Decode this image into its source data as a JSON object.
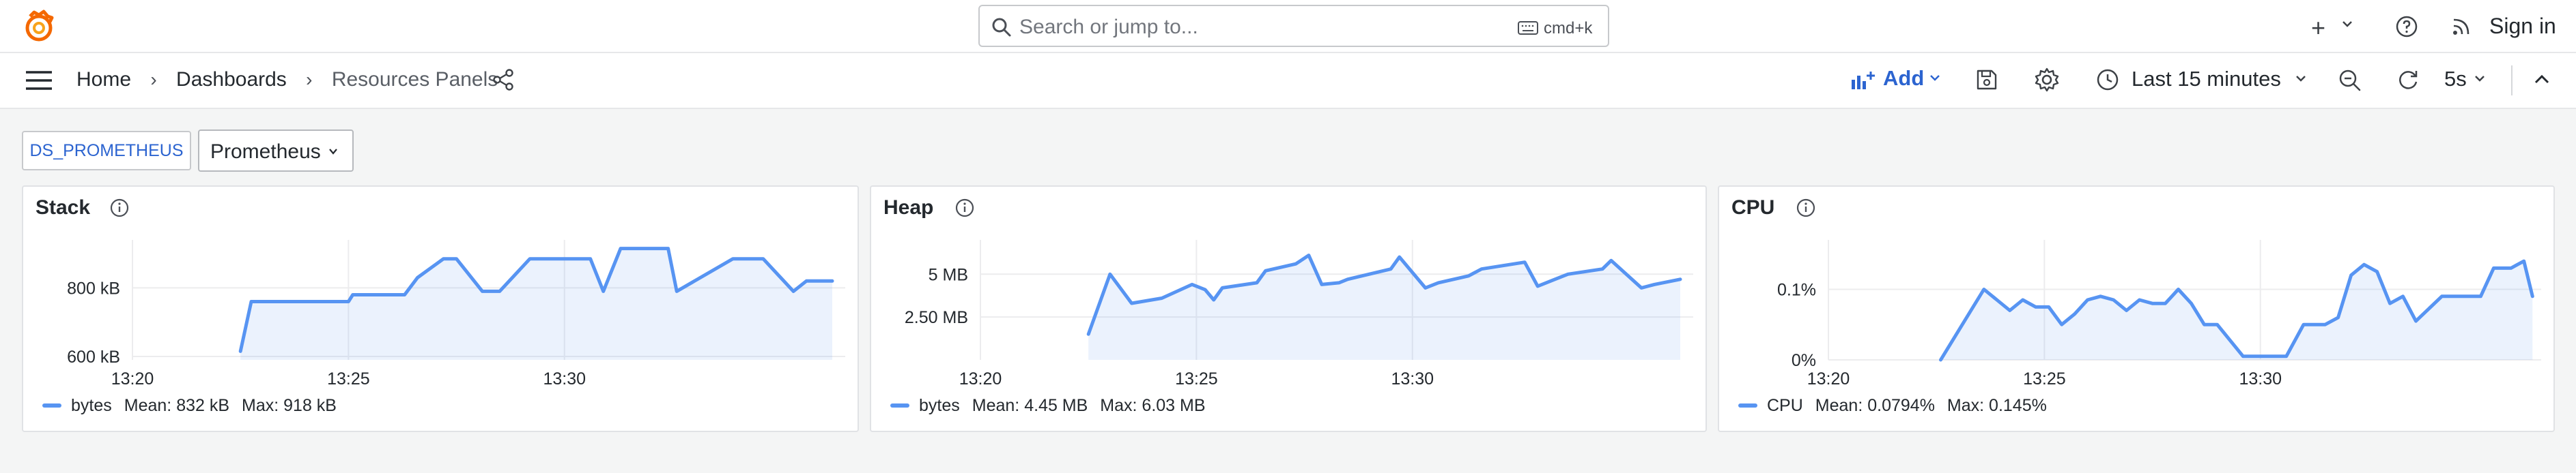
{
  "topbar": {
    "search_placeholder": "Search or jump to...",
    "search_shortcut": "cmd+k",
    "plus_label": "+",
    "signin_label": "Sign in"
  },
  "navbar": {
    "breadcrumb": [
      "Home",
      "Dashboards",
      "Resources Panels"
    ],
    "add_label": "Add",
    "time_range": "Last 15 minutes",
    "refresh_interval": "5s"
  },
  "variables": {
    "label": "DS_PROMETHEUS",
    "value": "Prometheus"
  },
  "colors": {
    "series": "#5794f2",
    "accent": "#2c64d0",
    "logo": "#f46800"
  },
  "panels": [
    {
      "title": "Stack",
      "legend": {
        "series": "bytes",
        "mean": "Mean: 832 kB",
        "max": "Max: 918 kB"
      }
    },
    {
      "title": "Heap",
      "legend": {
        "series": "bytes",
        "mean": "Mean: 4.45 MB",
        "max": "Max: 6.03 MB"
      }
    },
    {
      "title": "CPU",
      "legend": {
        "series": "CPU",
        "mean": "Mean: 0.0794%",
        "max": "Max: 0.145%"
      }
    }
  ],
  "chart_data": [
    {
      "type": "area",
      "title": "Stack",
      "x_tick_labels": [
        "13:20",
        "13:25",
        "13:30"
      ],
      "y_tick_labels": [
        "600 kB",
        "800 kB"
      ],
      "ylim": [
        590,
        940
      ],
      "x_range_minutes": [
        0,
        16.5
      ],
      "series": [
        {
          "name": "bytes",
          "x": [
            2.5,
            2.75,
            5,
            5.1,
            6.3,
            6.6,
            7.2,
            7.5,
            8.1,
            8.5,
            9.2,
            9.6,
            10.6,
            10.9,
            11.3,
            11.6,
            12.4,
            12.6,
            13.9,
            14.2,
            14.6,
            15.3,
            15.6,
            16.2
          ],
          "values": [
            615,
            760,
            760,
            780,
            780,
            830,
            885,
            885,
            790,
            790,
            885,
            885,
            885,
            790,
            915,
            915,
            915,
            790,
            885,
            885,
            885,
            790,
            820,
            820
          ]
        }
      ]
    },
    {
      "type": "area",
      "title": "Heap",
      "x_tick_labels": [
        "13:20",
        "13:25",
        "13:30"
      ],
      "y_tick_labels": [
        "2.50 MB",
        "5 MB"
      ],
      "ylim": [
        0,
        7
      ],
      "x_range_minutes": [
        0,
        16.5
      ],
      "series": [
        {
          "name": "bytes",
          "x": [
            2.5,
            3.0,
            3.5,
            4.2,
            4.9,
            5.2,
            5.4,
            5.6,
            6.4,
            6.6,
            7.3,
            7.6,
            7.9,
            8.3,
            8.5,
            9.5,
            9.7,
            10.3,
            10.6,
            11.3,
            11.6,
            12.6,
            12.9,
            13.3,
            13.6,
            14.4,
            14.6,
            15.3,
            15.6,
            16.2
          ],
          "values": [
            1.5,
            5.0,
            3.3,
            3.6,
            4.4,
            4.1,
            3.5,
            4.2,
            4.5,
            5.2,
            5.6,
            6.1,
            4.4,
            4.5,
            4.7,
            5.3,
            6.0,
            4.2,
            4.5,
            4.9,
            5.3,
            5.7,
            4.3,
            4.7,
            5.0,
            5.3,
            5.8,
            4.2,
            4.4,
            4.7
          ]
        }
      ]
    },
    {
      "type": "area",
      "title": "CPU",
      "x_tick_labels": [
        "13:20",
        "13:25",
        "13:30"
      ],
      "y_tick_labels": [
        "0%",
        "0.1%"
      ],
      "ylim": [
        0,
        0.17
      ],
      "x_range_minutes": [
        0,
        16.5
      ],
      "series": [
        {
          "name": "CPU",
          "x": [
            2.6,
            3.3,
            3.6,
            3.9,
            4.2,
            4.5,
            4.8,
            5.1,
            5.4,
            5.7,
            6.0,
            6.3,
            6.6,
            6.9,
            7.2,
            7.5,
            7.8,
            8.1,
            8.4,
            8.7,
            9.0,
            9.6,
            10.2,
            10.6,
            11.0,
            11.2,
            11.5,
            11.8,
            12.1,
            12.4,
            12.7,
            13.0,
            13.3,
            13.6,
            14.2,
            14.5,
            14.8,
            15.1,
            15.4,
            15.8,
            16.1,
            16.3
          ],
          "values": [
            0,
            0.07,
            0.1,
            0.085,
            0.07,
            0.085,
            0.075,
            0.075,
            0.05,
            0.065,
            0.085,
            0.09,
            0.085,
            0.07,
            0.085,
            0.08,
            0.08,
            0.1,
            0.08,
            0.05,
            0.05,
            0.005,
            0.005,
            0.005,
            0.05,
            0.05,
            0.05,
            0.06,
            0.12,
            0.135,
            0.125,
            0.08,
            0.09,
            0.055,
            0.09,
            0.09,
            0.09,
            0.09,
            0.13,
            0.13,
            0.14,
            0.09
          ]
        }
      ]
    }
  ]
}
